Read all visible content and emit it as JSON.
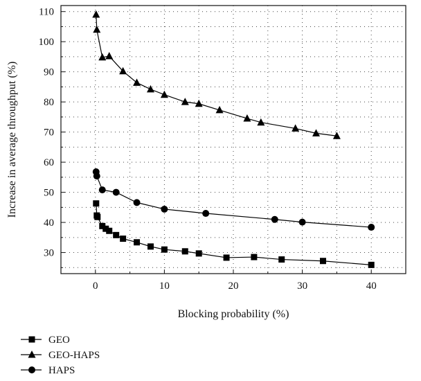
{
  "chart_data": {
    "type": "line",
    "xlabel": "Blocking probability (%)",
    "ylabel": "Increase in average throughput (%)",
    "xlim": [
      -5,
      45
    ],
    "ylim": [
      23,
      112
    ],
    "x_ticks": [
      0,
      10,
      20,
      30,
      40
    ],
    "y_ticks": [
      30,
      40,
      50,
      60,
      70,
      80,
      90,
      100,
      110
    ],
    "grid": true,
    "legend_position": "bottom-left",
    "series": [
      {
        "name": "GEO",
        "marker": "square",
        "points": [
          [
            0.1,
            46.3
          ],
          [
            0.2,
            42.3
          ],
          [
            0.3,
            41.8
          ],
          [
            1,
            38.8
          ],
          [
            1.5,
            37.9
          ],
          [
            2,
            37.2
          ],
          [
            3,
            35.8
          ],
          [
            4,
            34.6
          ],
          [
            6,
            33.4
          ],
          [
            8,
            32.0
          ],
          [
            10,
            31.0
          ],
          [
            13,
            30.4
          ],
          [
            15,
            29.7
          ],
          [
            19,
            28.3
          ],
          [
            23,
            28.5
          ],
          [
            27,
            27.7
          ],
          [
            33,
            27.2
          ],
          [
            40,
            25.9
          ]
        ]
      },
      {
        "name": "GEO-HAPS",
        "marker": "triangle",
        "points": [
          [
            0.1,
            109.0
          ],
          [
            0.2,
            104.0
          ],
          [
            1,
            94.8
          ],
          [
            2,
            95.2
          ],
          [
            4,
            90.2
          ],
          [
            6,
            86.4
          ],
          [
            8,
            84.2
          ],
          [
            10,
            82.4
          ],
          [
            13,
            80.0
          ],
          [
            15,
            79.4
          ],
          [
            18,
            77.3
          ],
          [
            22,
            74.5
          ],
          [
            24,
            73.2
          ],
          [
            29,
            71.2
          ],
          [
            32,
            69.6
          ],
          [
            35,
            68.7
          ]
        ]
      },
      {
        "name": "HAPS",
        "marker": "circle",
        "points": [
          [
            0.1,
            56.8
          ],
          [
            0.2,
            55.4
          ],
          [
            1,
            50.8
          ],
          [
            3,
            50.0
          ],
          [
            6,
            46.6
          ],
          [
            10,
            44.4
          ],
          [
            16,
            43.0
          ],
          [
            26,
            41.0
          ],
          [
            30,
            40.1
          ],
          [
            40,
            38.4
          ]
        ]
      }
    ]
  }
}
